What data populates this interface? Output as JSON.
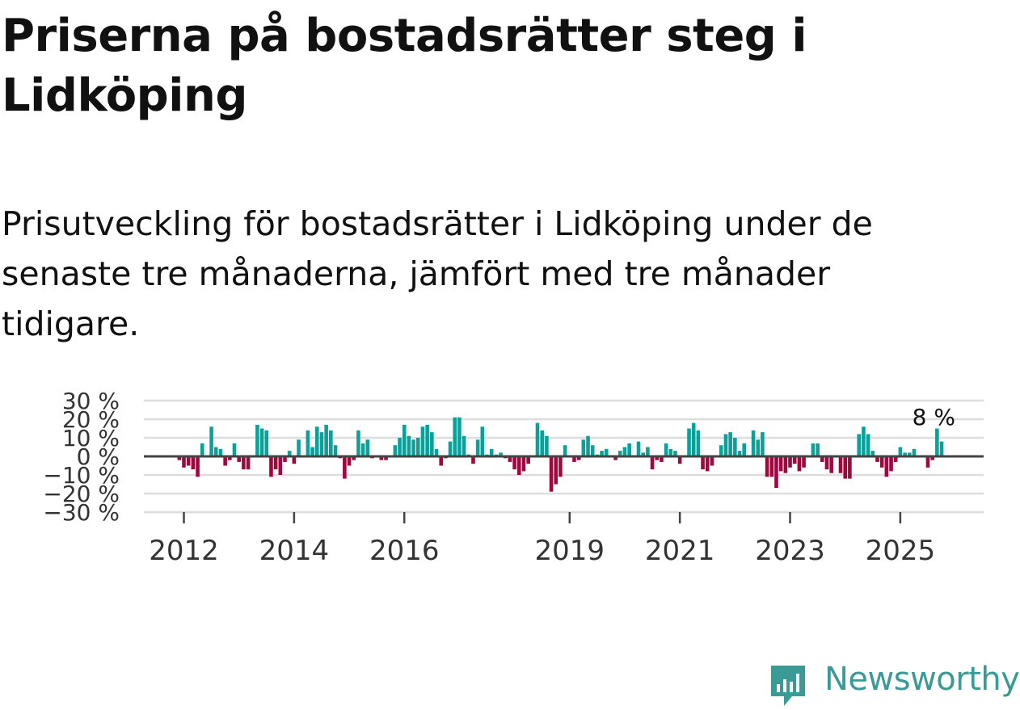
{
  "title": "Priserna på bostadsrätter steg i Lidköping",
  "subtitle": "Prisutveckling för bostadsrätter i Lidköping under de senaste tre månaderna, jämfört med tre månader tidigare.",
  "brand": {
    "name": "Newsworthy",
    "color": "#3a9a95"
  },
  "colors": {
    "positive": "#0aa19a",
    "negative": "#a1063f",
    "grid": "#dddddd",
    "zero": "#444444",
    "axis_text": "#333333"
  },
  "chart_data": {
    "type": "bar",
    "title": "",
    "xlabel": "",
    "ylabel": "",
    "ylim": [
      -30,
      30
    ],
    "y_ticks": [
      30,
      20,
      10,
      0,
      -10,
      -20,
      -30
    ],
    "y_tick_labels": [
      "30 %",
      "20 %",
      "10 %",
      "0 %",
      "−10 %",
      "−20 %",
      "−30 %"
    ],
    "x_tick_labels": [
      "2012",
      "2014",
      "2016",
      "2019",
      "2021",
      "2023",
      "2025"
    ],
    "x_tick_index": [
      9,
      33,
      57,
      93,
      117,
      141,
      165
    ],
    "annotation": {
      "text": "8 %",
      "index": 173
    },
    "values": [
      0,
      0,
      0,
      0,
      0,
      0,
      0,
      0,
      -2,
      -6,
      -5,
      -7,
      -11,
      7,
      0,
      16,
      5,
      4,
      -5,
      -2,
      7,
      -3,
      -7,
      -7,
      0,
      17,
      15,
      14,
      -11,
      -7,
      -10,
      -3,
      3,
      -4,
      9,
      0,
      14,
      5,
      16,
      13,
      17,
      14,
      6,
      -1,
      -12,
      -5,
      -2,
      14,
      7,
      9,
      -1,
      0,
      -2,
      -2,
      0,
      6,
      10,
      17,
      11,
      9,
      10,
      16,
      17,
      13,
      4,
      -5,
      -1,
      8,
      21,
      21,
      11,
      1,
      -4,
      9,
      16,
      1,
      4,
      1,
      2,
      -1,
      -3,
      -7,
      -10,
      -8,
      -4,
      0,
      18,
      14,
      11,
      -19,
      -15,
      -11,
      6,
      0,
      -3,
      -2,
      9,
      11,
      6,
      1,
      3,
      4,
      0,
      -2,
      3,
      5,
      7,
      0,
      8,
      2,
      5,
      -7,
      -2,
      -3,
      7,
      4,
      3,
      -4,
      0,
      15,
      18,
      14,
      -7,
      -8,
      -5,
      0,
      6,
      12,
      13,
      10,
      3,
      7,
      0,
      14,
      9,
      13,
      -11,
      -11,
      -17,
      -8,
      -9,
      -6,
      -4,
      -8,
      -6,
      0,
      7,
      7,
      -3,
      -7,
      -9,
      0,
      -9,
      -12,
      -12,
      0,
      12,
      16,
      12,
      3,
      -3,
      -6,
      -11,
      -8,
      -3,
      5,
      2,
      2,
      4,
      0,
      0,
      -6,
      -2,
      15,
      8
    ]
  }
}
